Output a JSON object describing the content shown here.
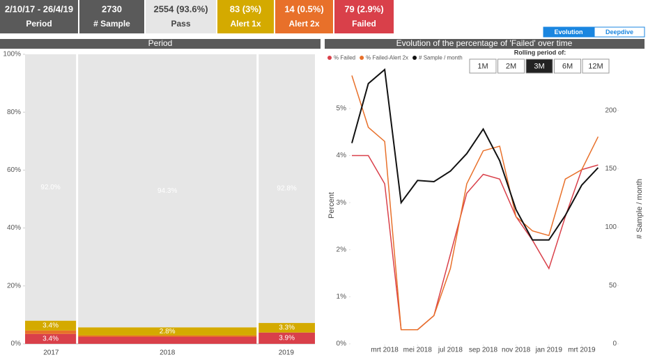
{
  "kpis": [
    {
      "value": "2/10/17 - 26/4/19",
      "label": "Period",
      "color": "#5a5a5a"
    },
    {
      "value": "2730",
      "label": "# Sample",
      "color": "#5a5a5a"
    },
    {
      "value": "2554 (93.6%)",
      "label": "Pass",
      "color": "#e6e6e6"
    },
    {
      "value": "83 (3%)",
      "label": "Alert 1x",
      "color": "#d4aa00"
    },
    {
      "value": "14 (0.5%)",
      "label": "Alert 2x",
      "color": "#e8702a"
    },
    {
      "value": "79 (2.9%)",
      "label": "Failed",
      "color": "#d9404a"
    }
  ],
  "tabs": {
    "items": [
      "Evolution",
      "Deepdive"
    ],
    "selected": 0
  },
  "chart_data": [
    {
      "type": "marimekko",
      "title": "Period",
      "categories": [
        "2017",
        "2018",
        "2019"
      ],
      "widths": [
        490,
        1700,
        540
      ],
      "series": [
        {
          "color": "#d9404a",
          "values": [
            3.4,
            2.4,
            3.9
          ],
          "value_labels": [
            "3.4%",
            null,
            "3.9%"
          ]
        },
        {
          "color": "#e8702a",
          "values": [
            1.2,
            0.5,
            0
          ]
        },
        {
          "color": "#d4aa00",
          "values": [
            3.4,
            2.8,
            3.3
          ],
          "value_labels": [
            "3.4%",
            "2.8%",
            "3.3%"
          ]
        },
        {
          "color": "#e6e6e6",
          "values": [
            92.0,
            94.3,
            92.8
          ],
          "value_labels": [
            "92.0%",
            "94.3%",
            "92.8%"
          ]
        }
      ],
      "ylim": [
        0,
        100
      ],
      "yticks": [
        {
          "value": 0,
          "label": "0%"
        },
        {
          "value": 20,
          "label": "20%"
        },
        {
          "value": 40,
          "label": "40%"
        },
        {
          "value": 60,
          "label": "60%"
        },
        {
          "value": 80,
          "label": "80%"
        },
        {
          "value": 100,
          "label": "100%"
        }
      ]
    },
    {
      "type": "line",
      "title": "Evolution of the percentage of 'Failed' over time",
      "rolling_label": "Rolling period of:",
      "rolling_options": [
        "1M",
        "2M",
        "3M",
        "6M",
        "12M"
      ],
      "rolling_selected": 2,
      "ylabel": "Percent",
      "y2label": "# Sample / month",
      "x": [
        "2018-01",
        "2018-02",
        "2018-03",
        "2018-04",
        "2018-05",
        "2018-06",
        "2018-07",
        "2018-08",
        "2018-09",
        "2018-10",
        "2018-11",
        "2018-12",
        "2019-01",
        "2019-02",
        "2019-03",
        "2019-04"
      ],
      "series": [
        {
          "name": "% Failed",
          "color": "#d9404a",
          "values": [
            4.0,
            4.0,
            3.4,
            0.3,
            0.3,
            0.6,
            1.9,
            3.2,
            3.6,
            3.5,
            2.7,
            2.2,
            1.6,
            2.7,
            3.7,
            3.8
          ]
        },
        {
          "name": "% Failed-Alert 2x",
          "color": "#e8702a",
          "values": [
            5.7,
            4.6,
            4.3,
            0.3,
            0.3,
            0.6,
            1.6,
            3.4,
            4.1,
            4.2,
            2.7,
            2.4,
            2.3,
            3.5,
            3.7,
            4.4
          ]
        },
        {
          "name": "# Sample / month",
          "color": "#111111",
          "axis": "y2",
          "values": [
            172,
            223,
            235,
            121,
            140,
            139,
            148,
            163,
            184,
            157,
            115,
            89,
            89,
            110,
            136,
            151
          ]
        }
      ],
      "xlim": [
        "2018-01",
        "2019-05"
      ],
      "xticks": [
        {
          "value": "2018-03",
          "label": "mrt 2018"
        },
        {
          "value": "2018-05",
          "label": "mei 2018"
        },
        {
          "value": "2018-07",
          "label": "jul 2018"
        },
        {
          "value": "2018-09",
          "label": "sep 2018"
        },
        {
          "value": "2018-11",
          "label": "nov 2018"
        },
        {
          "value": "2019-01",
          "label": "jan 2019"
        },
        {
          "value": "2019-03",
          "label": "mrt 2019"
        }
      ],
      "ylim": [
        0,
        5.9
      ],
      "yticks": [
        {
          "value": 0,
          "label": "0%"
        },
        {
          "value": 1,
          "label": "1%"
        },
        {
          "value": 2,
          "label": "2%"
        },
        {
          "value": 3,
          "label": "3%"
        },
        {
          "value": 4,
          "label": "4%"
        },
        {
          "value": 5,
          "label": "5%"
        }
      ],
      "y2lim": [
        0,
        238
      ],
      "y2ticks": [
        0,
        50,
        100,
        150,
        200
      ]
    }
  ]
}
